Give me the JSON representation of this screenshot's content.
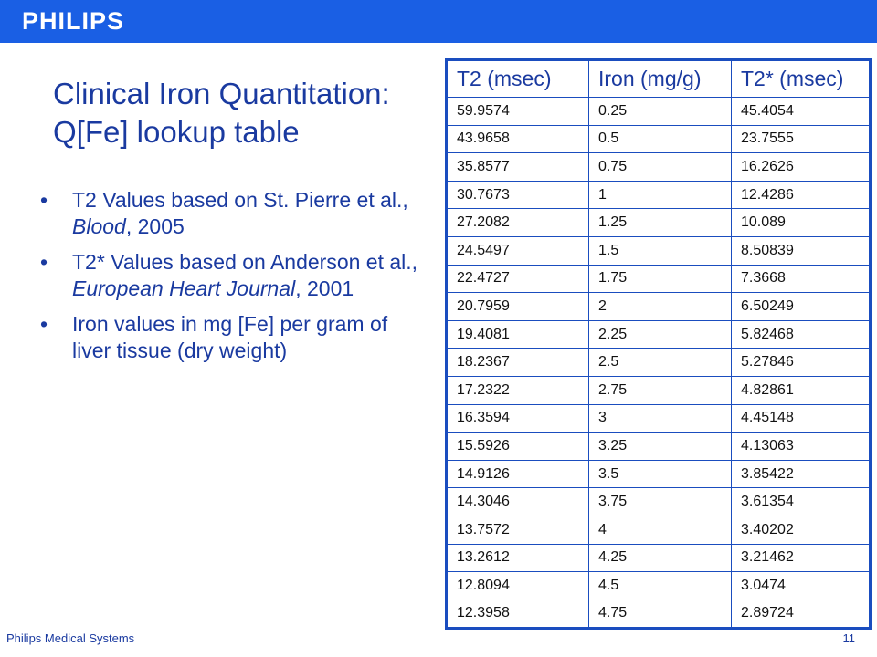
{
  "header": {
    "logo_text": "PHILIPS",
    "bar_color": "#1a5fe4"
  },
  "slide": {
    "title_line1": "Clinical Iron Quantitation:",
    "title_line2": "Q[Fe] lookup table",
    "bullets": [
      {
        "pre": "T2 Values based on St. Pierre et al., ",
        "italic": "Blood",
        "post": ", 2005"
      },
      {
        "pre": "T2* Values based on Anderson et al., ",
        "italic": "European Heart Journal",
        "post": ", 2001"
      },
      {
        "pre": "Iron values in mg [Fe] per gram of liver tissue (dry weight)",
        "italic": "",
        "post": ""
      }
    ]
  },
  "table": {
    "headers": [
      "T2 (msec)",
      "Iron (mg/g)",
      "T2* (msec)"
    ],
    "rows": [
      [
        "59.9574",
        "0.25",
        "45.4054"
      ],
      [
        "43.9658",
        "0.5",
        "23.7555"
      ],
      [
        "35.8577",
        "0.75",
        "16.2626"
      ],
      [
        "30.7673",
        "1",
        "12.4286"
      ],
      [
        "27.2082",
        "1.25",
        "10.089"
      ],
      [
        "24.5497",
        "1.5",
        "8.50839"
      ],
      [
        "22.4727",
        "1.75",
        "7.3668"
      ],
      [
        "20.7959",
        "2",
        "6.50249"
      ],
      [
        "19.4081",
        "2.25",
        "5.82468"
      ],
      [
        "18.2367",
        "2.5",
        "5.27846"
      ],
      [
        "17.2322",
        "2.75",
        "4.82861"
      ],
      [
        "16.3594",
        "3",
        "4.45148"
      ],
      [
        "15.5926",
        "3.25",
        "4.13063"
      ],
      [
        "14.9126",
        "3.5",
        "3.85422"
      ],
      [
        "14.3046",
        "3.75",
        "3.61354"
      ],
      [
        "13.7572",
        "4",
        "3.40202"
      ],
      [
        "13.2612",
        "4.25",
        "3.21462"
      ],
      [
        "12.8094",
        "4.5",
        "3.0474"
      ],
      [
        "12.3958",
        "4.75",
        "2.89724"
      ]
    ]
  },
  "footer": {
    "company": "Philips Medical Systems",
    "page_number": "11"
  }
}
